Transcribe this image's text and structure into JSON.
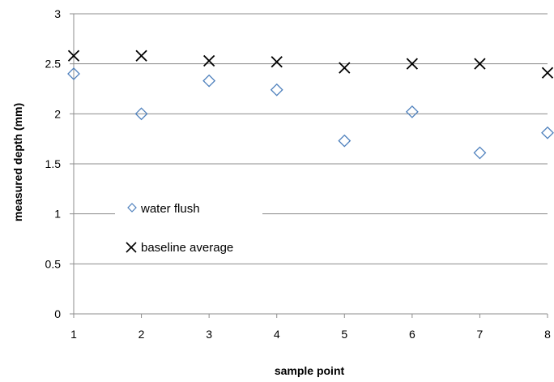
{
  "chart_data": {
    "type": "scatter",
    "title": "",
    "xlabel": "sample point",
    "ylabel": "measured depth (mm)",
    "xlim": [
      1,
      8
    ],
    "ylim": [
      0,
      3
    ],
    "x_ticks": [
      "1",
      "2",
      "3",
      "4",
      "5",
      "6",
      "7",
      "8"
    ],
    "y_ticks": [
      "0",
      "0.5",
      "1",
      "1.5",
      "2",
      "2.5",
      "3"
    ],
    "grid": "horizontal",
    "legend_position": "center-left",
    "series": [
      {
        "name": "water flush",
        "marker": "diamond",
        "color": "#4f81bd",
        "x": [
          1,
          2,
          3,
          4,
          5,
          6,
          7,
          8
        ],
        "y": [
          2.4,
          2.0,
          2.33,
          2.24,
          1.73,
          2.02,
          1.61,
          1.81
        ]
      },
      {
        "name": "baseline average",
        "marker": "x",
        "color": "#000000",
        "x": [
          1,
          2,
          3,
          4,
          5,
          6,
          7,
          8
        ],
        "y": [
          2.58,
          2.58,
          2.53,
          2.52,
          2.46,
          2.5,
          2.5,
          2.41
        ]
      }
    ]
  }
}
